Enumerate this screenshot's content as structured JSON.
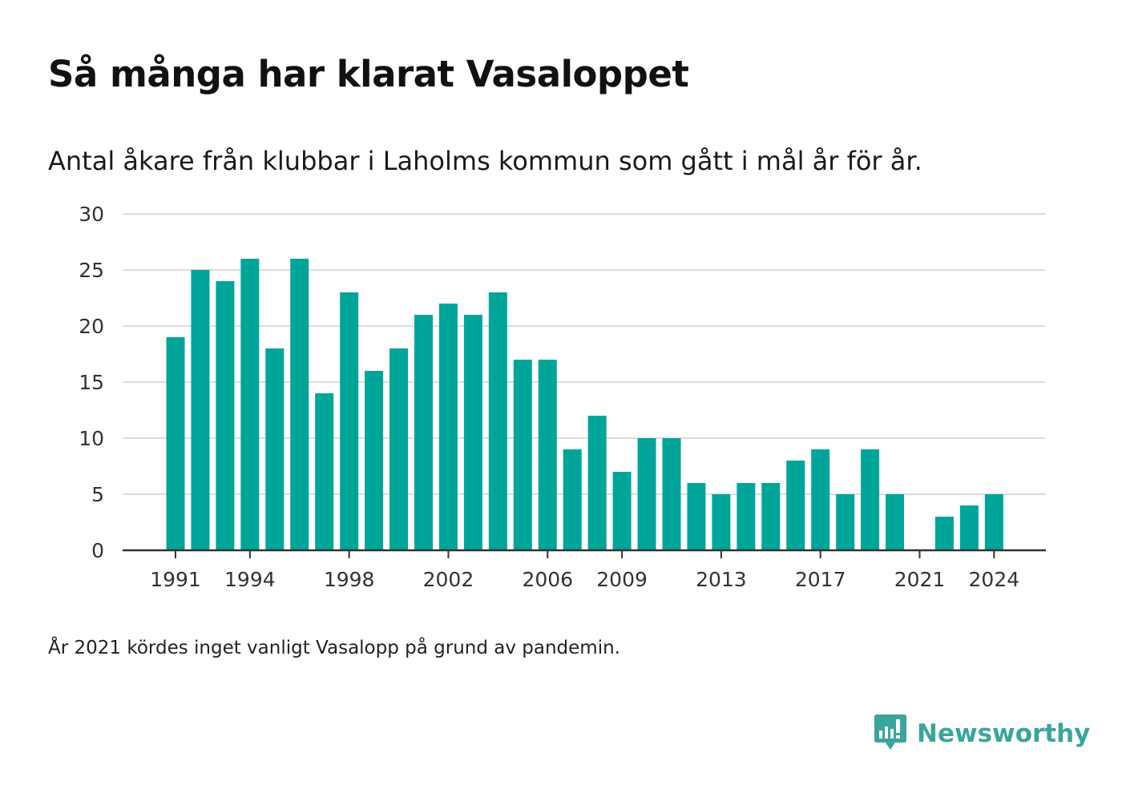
{
  "header": {
    "title": "Så många har klarat Vasaloppet",
    "subtitle": "Antal åkare från klubbar i Laholms kommun som gått i mål år för år."
  },
  "footer": {
    "note": "År 2021 kördes inget vanligt Vasalopp på grund av pandemin.",
    "brand": "Newsworthy",
    "brand_icon": "newsworthy-logo-icon"
  },
  "colors": {
    "bar": "#00a59a",
    "gridline": "#dddddd",
    "axis": "#333333",
    "brand": "#3aa59c"
  },
  "chart_data": {
    "type": "bar",
    "title": "Så många har klarat Vasaloppet",
    "subtitle": "Antal åkare från klubbar i Laholms kommun som gått i mål år för år.",
    "xlabel": "",
    "ylabel": "",
    "ylim": [
      0,
      30
    ],
    "yticks": [
      0,
      5,
      10,
      15,
      20,
      25,
      30
    ],
    "xtick_labels": [
      "1991",
      "1994",
      "1998",
      "2002",
      "2006",
      "2009",
      "2013",
      "2017",
      "2021",
      "2024"
    ],
    "grid": true,
    "categories": [
      1991,
      1992,
      1993,
      1994,
      1995,
      1996,
      1997,
      1998,
      1999,
      2000,
      2001,
      2002,
      2003,
      2004,
      2005,
      2006,
      2007,
      2008,
      2009,
      2010,
      2011,
      2012,
      2013,
      2014,
      2015,
      2016,
      2017,
      2018,
      2019,
      2020,
      2021,
      2022,
      2023,
      2024
    ],
    "values": [
      19,
      25,
      24,
      26,
      18,
      26,
      14,
      23,
      16,
      18,
      21,
      22,
      21,
      23,
      17,
      17,
      9,
      12,
      7,
      10,
      10,
      6,
      5,
      6,
      6,
      8,
      9,
      5,
      9,
      5,
      0,
      3,
      4,
      5
    ]
  }
}
